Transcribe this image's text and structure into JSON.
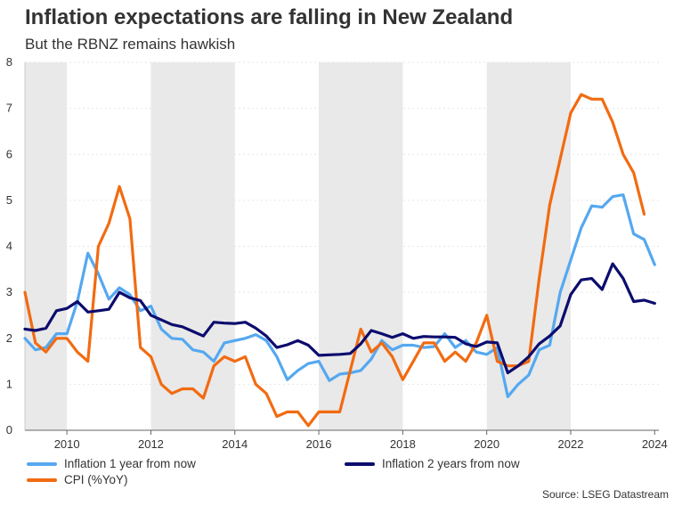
{
  "header": {
    "title": "Inflation expectations are falling in New Zealand",
    "subtitle": "But the RBNZ remains hawkish"
  },
  "source": "Source: LSEG Datastream",
  "colors": {
    "infl1": "#55a8f0",
    "infl2": "#0c0c6e",
    "cpi": "#f26b11",
    "band": "#e9e9e9",
    "grid": "#e6e6e6"
  },
  "chart_data": {
    "type": "line",
    "title": "Inflation expectations are falling in New Zealand",
    "subtitle": "But the RBNZ remains hawkish",
    "xlabel": "",
    "ylabel": "",
    "xlim": [
      2009.0,
      2024.1
    ],
    "ylim": [
      0,
      8
    ],
    "yticks": [
      0,
      1,
      2,
      3,
      4,
      5,
      6,
      7,
      8
    ],
    "xticks": [
      2010,
      2012,
      2014,
      2016,
      2018,
      2020,
      2022,
      2024
    ],
    "shaded_periods": [
      [
        2009.0,
        2010.0
      ],
      [
        2012.0,
        2014.0
      ],
      [
        2016.0,
        2018.0
      ],
      [
        2020.0,
        2022.0
      ]
    ],
    "legend_position": "bottom",
    "series": [
      {
        "key": "infl1",
        "name": "Inflation 1 year from now",
        "x": [
          2009.0,
          2009.25,
          2009.5,
          2009.75,
          2010.0,
          2010.25,
          2010.5,
          2010.75,
          2011.0,
          2011.25,
          2011.5,
          2011.75,
          2012.0,
          2012.25,
          2012.5,
          2012.75,
          2013.0,
          2013.25,
          2013.5,
          2013.75,
          2014.0,
          2014.25,
          2014.5,
          2014.75,
          2015.0,
          2015.25,
          2015.5,
          2015.75,
          2016.0,
          2016.25,
          2016.5,
          2016.75,
          2017.0,
          2017.25,
          2017.5,
          2017.75,
          2018.0,
          2018.25,
          2018.5,
          2018.75,
          2019.0,
          2019.25,
          2019.5,
          2019.75,
          2020.0,
          2020.25,
          2020.5,
          2020.75,
          2021.0,
          2021.25,
          2021.5,
          2021.75,
          2022.0,
          2022.25,
          2022.5,
          2022.75,
          2023.0,
          2023.25,
          2023.5,
          2023.75,
          2024.0
        ],
        "values": [
          2.0,
          1.75,
          1.8,
          2.1,
          2.1,
          2.8,
          3.85,
          3.4,
          2.85,
          3.1,
          2.95,
          2.6,
          2.7,
          2.2,
          2.0,
          1.98,
          1.75,
          1.7,
          1.5,
          1.9,
          1.95,
          2.0,
          2.08,
          1.95,
          1.6,
          1.1,
          1.3,
          1.45,
          1.5,
          1.08,
          1.22,
          1.25,
          1.3,
          1.55,
          1.95,
          1.75,
          1.85,
          1.85,
          1.8,
          1.82,
          2.1,
          1.8,
          1.95,
          1.7,
          1.65,
          1.8,
          0.73,
          1.0,
          1.2,
          1.75,
          1.85,
          3.0,
          3.7,
          4.4,
          4.88,
          4.85,
          5.08,
          5.12,
          4.27,
          4.15,
          3.6
        ]
      },
      {
        "key": "infl2",
        "name": "Inflation 2 years from now",
        "x": [
          2009.0,
          2009.25,
          2009.5,
          2009.75,
          2010.0,
          2010.25,
          2010.5,
          2010.75,
          2011.0,
          2011.25,
          2011.5,
          2011.75,
          2012.0,
          2012.25,
          2012.5,
          2012.75,
          2013.0,
          2013.25,
          2013.5,
          2013.75,
          2014.0,
          2014.25,
          2014.5,
          2014.75,
          2015.0,
          2015.25,
          2015.5,
          2015.75,
          2016.0,
          2016.25,
          2016.5,
          2016.75,
          2017.0,
          2017.25,
          2017.5,
          2017.75,
          2018.0,
          2018.25,
          2018.5,
          2018.75,
          2019.0,
          2019.25,
          2019.5,
          2019.75,
          2020.0,
          2020.25,
          2020.5,
          2020.75,
          2021.0,
          2021.25,
          2021.5,
          2021.75,
          2022.0,
          2022.25,
          2022.5,
          2022.75,
          2023.0,
          2023.25,
          2023.5,
          2023.75,
          2024.0
        ],
        "values": [
          2.2,
          2.17,
          2.22,
          2.6,
          2.65,
          2.8,
          2.57,
          2.6,
          2.63,
          3.0,
          2.88,
          2.82,
          2.5,
          2.4,
          2.3,
          2.25,
          2.15,
          2.05,
          2.35,
          2.33,
          2.32,
          2.35,
          2.22,
          2.05,
          1.8,
          1.86,
          1.95,
          1.85,
          1.63,
          1.64,
          1.65,
          1.67,
          1.88,
          2.17,
          2.1,
          2.02,
          2.1,
          2.0,
          2.04,
          2.03,
          2.03,
          2.02,
          1.88,
          1.82,
          1.92,
          1.9,
          1.25,
          1.4,
          1.6,
          1.88,
          2.05,
          2.27,
          2.95,
          3.27,
          3.3,
          3.06,
          3.62,
          3.3,
          2.8,
          2.83,
          2.76
        ]
      },
      {
        "key": "cpi",
        "name": "CPI (%YoY)",
        "x": [
          2009.0,
          2009.25,
          2009.5,
          2009.75,
          2010.0,
          2010.25,
          2010.5,
          2010.75,
          2011.0,
          2011.25,
          2011.5,
          2011.75,
          2012.0,
          2012.25,
          2012.5,
          2012.75,
          2013.0,
          2013.25,
          2013.5,
          2013.75,
          2014.0,
          2014.25,
          2014.5,
          2014.75,
          2015.0,
          2015.25,
          2015.5,
          2015.75,
          2016.0,
          2016.25,
          2016.5,
          2016.75,
          2017.0,
          2017.25,
          2017.5,
          2017.75,
          2018.0,
          2018.25,
          2018.5,
          2018.75,
          2019.0,
          2019.25,
          2019.5,
          2019.75,
          2020.0,
          2020.25,
          2020.5,
          2020.75,
          2021.0,
          2021.25,
          2021.5,
          2021.75,
          2022.0,
          2022.25,
          2022.5,
          2022.75,
          2023.0,
          2023.25,
          2023.5,
          2023.75
        ],
        "values": [
          3.0,
          1.9,
          1.7,
          2.0,
          2.0,
          1.7,
          1.5,
          4.0,
          4.5,
          5.3,
          4.6,
          1.8,
          1.6,
          1.0,
          0.8,
          0.9,
          0.9,
          0.7,
          1.4,
          1.6,
          1.5,
          1.6,
          1.0,
          0.8,
          0.3,
          0.4,
          0.4,
          0.1,
          0.4,
          0.4,
          0.4,
          1.3,
          2.2,
          1.7,
          1.9,
          1.6,
          1.1,
          1.5,
          1.9,
          1.9,
          1.5,
          1.7,
          1.5,
          1.9,
          2.5,
          1.5,
          1.4,
          1.4,
          1.5,
          3.3,
          4.9,
          5.9,
          6.9,
          7.3,
          7.2,
          7.2,
          6.7,
          6.0,
          5.6,
          4.7
        ]
      }
    ]
  }
}
